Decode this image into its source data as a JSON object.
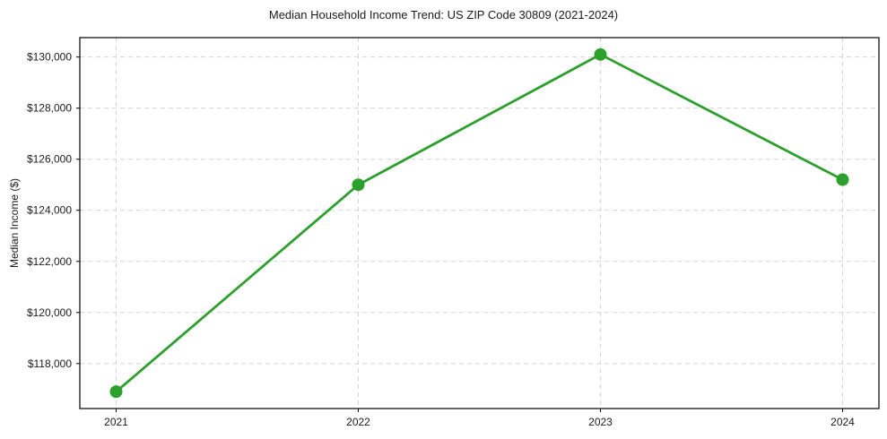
{
  "chart_data": {
    "type": "line",
    "title": "Median Household Income Trend: US ZIP Code 30809 (2021-2024)",
    "xlabel": "",
    "ylabel": "Median Income ($)",
    "x": [
      2021,
      2022,
      2023,
      2024
    ],
    "x_tick_labels": [
      "2021",
      "2022",
      "2023",
      "2024"
    ],
    "series": [
      {
        "name": "Median Household Income",
        "values": [
          116900,
          125000,
          130100,
          125200
        ]
      }
    ],
    "y_ticks": [
      118000,
      120000,
      122000,
      124000,
      126000,
      128000,
      130000
    ],
    "y_tick_labels": [
      "$118,000",
      "$120,000",
      "$122,000",
      "$124,000",
      "$126,000",
      "$128,000",
      "$130,000"
    ],
    "xlim": [
      2020.85,
      2024.15
    ],
    "ylim": [
      116240,
      130760
    ],
    "grid": true,
    "grid_style": "dashed",
    "legend": "none",
    "marker": "circle",
    "colors": {
      "line": "#2ca02c",
      "marker": "#2ca02c",
      "grid": "#d3d3d3",
      "spine": "#000000",
      "text": "#1a1a1a",
      "background": "#ffffff"
    }
  }
}
